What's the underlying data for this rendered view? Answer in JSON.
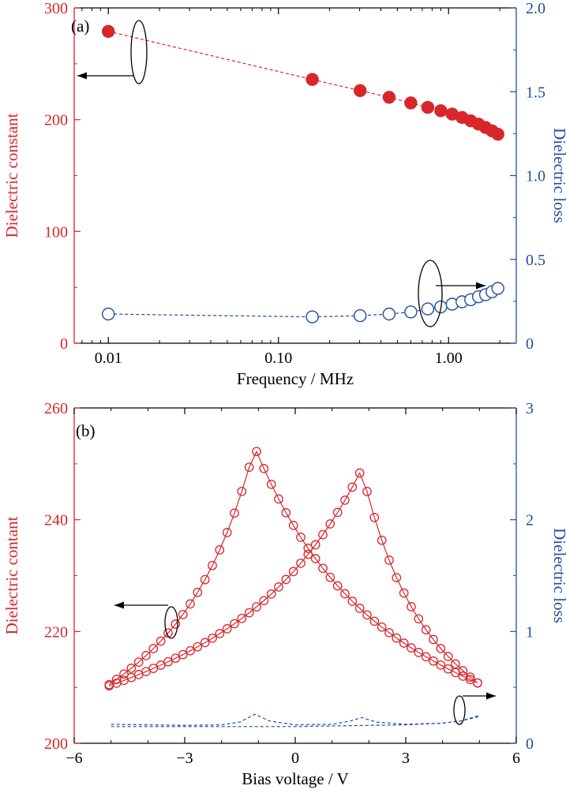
{
  "colors": {
    "red": "#d9262b",
    "blue": "#1f4e9e",
    "black": "#000000"
  },
  "chart_data": [
    {
      "type": "scatter",
      "panel_label": "(a)",
      "xscale": "log",
      "xlim": [
        0.0063,
        2.5
      ],
      "xlabel": "Frequency / MHz",
      "xticks": [
        {
          "value": 0.01,
          "label": "0.01"
        },
        {
          "value": 0.1,
          "label": "0.10"
        },
        {
          "value": 1,
          "label": "1.00"
        }
      ],
      "ylabel_left": "Dielectric constant",
      "ylim_left": [
        0,
        300
      ],
      "yticks_left": [
        {
          "value": 0,
          "label": "0"
        },
        {
          "value": 100,
          "label": "100"
        },
        {
          "value": 200,
          "label": "200"
        },
        {
          "value": 300,
          "label": "300"
        }
      ],
      "ylabel_right": "Dielectric loss",
      "ylim_right": [
        0,
        2.0
      ],
      "yticks_right": [
        {
          "value": 0,
          "label": "0"
        },
        {
          "value": 0.5,
          "label": "0.5"
        },
        {
          "value": 1.0,
          "label": "1.0"
        },
        {
          "value": 1.5,
          "label": "1.5"
        },
        {
          "value": 2.0,
          "label": "2.0"
        }
      ],
      "series": [
        {
          "axis": "left",
          "marker": "filled-circle",
          "line": "dashed",
          "color": "red",
          "x": [
            0.01,
            0.158,
            0.302,
            0.447,
            0.6,
            0.755,
            0.9,
            1.05,
            1.2,
            1.35,
            1.5,
            1.65,
            1.8,
            1.95
          ],
          "y": [
            279,
            236,
            226,
            220,
            215,
            211,
            208,
            205,
            202,
            199,
            196,
            193,
            190,
            187
          ]
        },
        {
          "axis": "right",
          "marker": "open-circle",
          "line": "dashed",
          "color": "blue",
          "x": [
            0.01,
            0.158,
            0.302,
            0.447,
            0.6,
            0.755,
            0.9,
            1.05,
            1.2,
            1.35,
            1.5,
            1.65,
            1.8,
            1.95
          ],
          "y": [
            0.174,
            0.157,
            0.164,
            0.174,
            0.187,
            0.204,
            0.217,
            0.233,
            0.247,
            0.26,
            0.277,
            0.29,
            0.307,
            0.327
          ]
        }
      ],
      "annotations": [
        {
          "type": "ellipse-arrow",
          "points_to": "left-axis",
          "series_axis": "left"
        },
        {
          "type": "ellipse-arrow",
          "points_to": "right-axis",
          "series_axis": "right"
        }
      ]
    },
    {
      "type": "scatter",
      "panel_label": "(b)",
      "xlim": [
        -6,
        6
      ],
      "xlabel": "Bias voltage / V",
      "xticks": [
        {
          "value": -6,
          "label": "−6"
        },
        {
          "value": -3,
          "label": "−3"
        },
        {
          "value": 0,
          "label": "0"
        },
        {
          "value": 3,
          "label": "3"
        },
        {
          "value": 6,
          "label": "6"
        }
      ],
      "ylabel_left": "Dielectric contant",
      "ylim_left": [
        200,
        260
      ],
      "yticks_left": [
        {
          "value": 200,
          "label": "200"
        },
        {
          "value": 220,
          "label": "220"
        },
        {
          "value": 240,
          "label": "240"
        },
        {
          "value": 260,
          "label": "260"
        }
      ],
      "ylabel_right": "Dielectric loss",
      "ylim_right": [
        0,
        3
      ],
      "yticks_right": [
        {
          "value": 0,
          "label": "0"
        },
        {
          "value": 1,
          "label": "1"
        },
        {
          "value": 2,
          "label": "2"
        },
        {
          "value": 3,
          "label": "3"
        }
      ],
      "sweep": {
        "v_min": -5.05,
        "v_max": 5.05,
        "step": 0.2,
        "base": 208,
        "up_peak_v": 1.8,
        "down_peak_v": -1.1,
        "up_peak": 249,
        "down_peak": 253
      },
      "series": [
        {
          "axis": "right",
          "line": "dashed",
          "color": "blue",
          "marker": "none",
          "x": [
            -5.0,
            -4.0,
            -3.0,
            -2.0,
            -1.5,
            -1.1,
            -0.7,
            0.0,
            1.0,
            1.5,
            1.8,
            2.2,
            3.0,
            4.0,
            4.5,
            5.0
          ],
          "y": [
            0.17,
            0.165,
            0.16,
            0.165,
            0.19,
            0.26,
            0.2,
            0.165,
            0.17,
            0.2,
            0.23,
            0.19,
            0.17,
            0.18,
            0.2,
            0.24
          ]
        },
        {
          "axis": "right",
          "line": "dashed",
          "color": "blue",
          "marker": "none",
          "x": [
            -5.0,
            -4.0,
            -3.0,
            -2.0,
            -1.0,
            0.0,
            1.0,
            2.0,
            3.0,
            4.0,
            4.5,
            5.0
          ],
          "y": [
            0.15,
            0.15,
            0.15,
            0.15,
            0.15,
            0.15,
            0.155,
            0.16,
            0.165,
            0.18,
            0.2,
            0.25
          ]
        }
      ],
      "annotations": [
        {
          "type": "ellipse-arrow",
          "points_to": "left-axis",
          "series_axis": "left"
        },
        {
          "type": "ellipse-arrow",
          "points_to": "right-axis",
          "series_axis": "right"
        }
      ]
    }
  ]
}
